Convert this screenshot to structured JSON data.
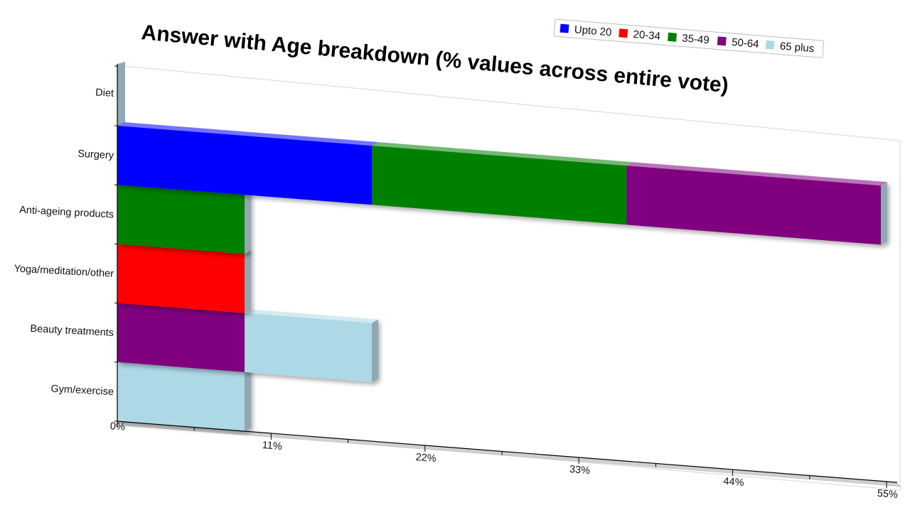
{
  "chart_data": {
    "type": "bar",
    "orientation": "horizontal",
    "stacked": true,
    "style": "3d-perspective",
    "title": "Answer with Age breakdown (% values across entire vote)",
    "xlabel": "",
    "ylabel": "",
    "xlim": [
      0,
      55
    ],
    "x_tick_labels": [
      "0%",
      "11%",
      "22%",
      "33%",
      "44%",
      "55%"
    ],
    "grid": false,
    "legend_position": "top-right",
    "categories": [
      "Diet",
      "Surgery",
      "Anti-ageing products",
      "Yoga/meditation/other",
      "Beauty treatments",
      "Gym/exercise"
    ],
    "series": [
      {
        "name": "Upto 20",
        "color": "#0000ff",
        "values": [
          0,
          18.2,
          0,
          0,
          0,
          0
        ]
      },
      {
        "name": "20-34",
        "color": "#ff0000",
        "values": [
          0,
          0,
          0,
          9.1,
          0,
          0
        ]
      },
      {
        "name": "35-49",
        "color": "#008000",
        "values": [
          0,
          18.2,
          9.1,
          0,
          0,
          0
        ]
      },
      {
        "name": "50-64",
        "color": "#800080",
        "values": [
          0,
          18.2,
          0,
          0,
          9.1,
          0
        ]
      },
      {
        "name": "65 plus",
        "color": "#add8e6",
        "values": [
          0,
          0,
          0,
          0,
          9.1,
          9.1
        ]
      }
    ]
  }
}
